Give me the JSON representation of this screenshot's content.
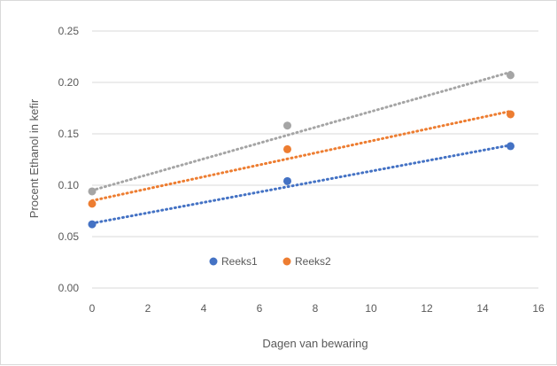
{
  "chart_data": {
    "type": "scatter",
    "title": "",
    "xlabel": "Dagen van bewaring",
    "ylabel": "Procent Ethanol in kefir",
    "xlim": [
      0,
      16
    ],
    "ylim": [
      0,
      0.25
    ],
    "x_ticks": [
      "0",
      "2",
      "4",
      "6",
      "8",
      "10",
      "12",
      "14",
      "16"
    ],
    "y_ticks": [
      "0.00",
      "0.05",
      "0.10",
      "0.15",
      "0.20",
      "0.25"
    ],
    "grid": "horizontal",
    "legend_position": "inside-bottom-left",
    "series": [
      {
        "name": "Reeks1",
        "color": "#4472c4",
        "points": [
          {
            "x": 0,
            "y": 0.062
          },
          {
            "x": 7,
            "y": 0.104
          },
          {
            "x": 15,
            "y": 0.138
          }
        ],
        "trendline": {
          "type": "linear",
          "from": [
            0,
            0.063
          ],
          "to": [
            15,
            0.139
          ]
        }
      },
      {
        "name": "Reeks2",
        "color": "#ed7d31",
        "points": [
          {
            "x": 0,
            "y": 0.082
          },
          {
            "x": 7,
            "y": 0.135
          },
          {
            "x": 15,
            "y": 0.169
          }
        ],
        "trendline": {
          "type": "linear",
          "from": [
            0,
            0.085
          ],
          "to": [
            15,
            0.172
          ]
        }
      },
      {
        "name": "",
        "color": "#a5a5a5",
        "points": [
          {
            "x": 0,
            "y": 0.094
          },
          {
            "x": 7,
            "y": 0.158
          },
          {
            "x": 15,
            "y": 0.207
          }
        ],
        "trendline": {
          "type": "linear",
          "from": [
            0,
            0.095
          ],
          "to": [
            15,
            0.21
          ]
        }
      }
    ],
    "legend": [
      "Reeks1",
      "Reeks2"
    ]
  }
}
